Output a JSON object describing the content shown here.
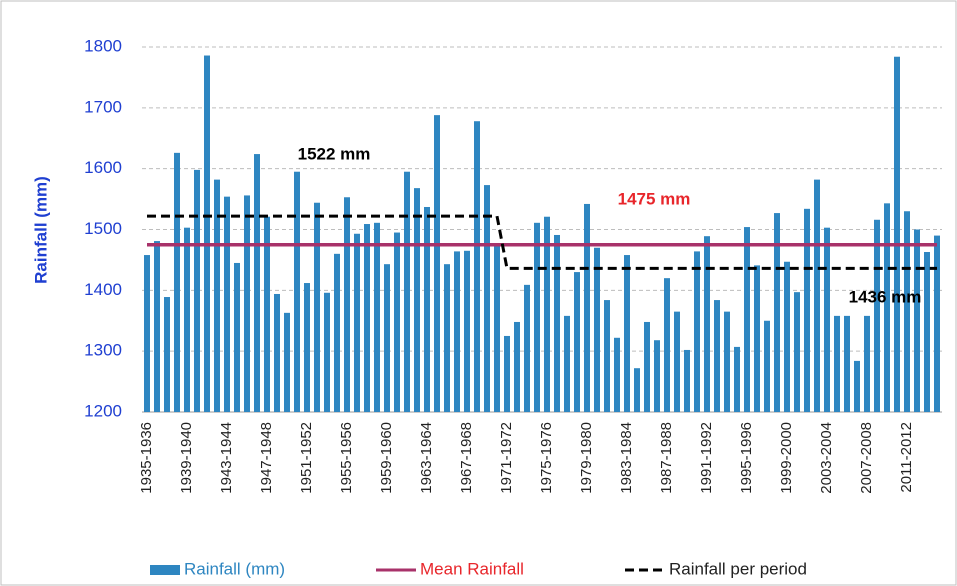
{
  "chart_data": {
    "type": "bar",
    "y_label": "Rainfall (mm)",
    "categories": [
      "1935-1936",
      null,
      null,
      null,
      "1939-1940",
      null,
      null,
      null,
      "1943-1944",
      null,
      null,
      null,
      "1947-1948",
      null,
      null,
      null,
      "1951-1952",
      null,
      null,
      null,
      "1955-1956",
      null,
      null,
      null,
      "1959-1960",
      null,
      null,
      null,
      "1963-1964",
      null,
      null,
      null,
      "1967-1968",
      null,
      null,
      null,
      "1971-1972",
      null,
      null,
      null,
      "1975-1976",
      null,
      null,
      null,
      "1979-1980",
      null,
      null,
      null,
      "1983-1984",
      null,
      null,
      null,
      "1987-1988",
      null,
      null,
      null,
      "1991-1992",
      null,
      null,
      null,
      "1995-1996",
      null,
      null,
      null,
      "1999-2000",
      null,
      null,
      null,
      "2003-2004",
      null,
      null,
      null,
      "2007-2008",
      null,
      null,
      null,
      "2011-2012",
      null,
      null,
      null
    ],
    "series": [
      {
        "name": "Rainfall (mm)",
        "type": "bar",
        "color": "#2e86c1",
        "values": [
          1458,
          1481,
          1389,
          1626,
          1503,
          1598,
          1786,
          1582,
          1554,
          1445,
          1556,
          1624,
          1521,
          1394,
          1363,
          1595,
          1412,
          1544,
          1396,
          1460,
          1553,
          1493,
          1509,
          1511,
          1443,
          1495,
          1595,
          1568,
          1537,
          1688,
          1443,
          1464,
          1465,
          1678,
          1573,
          1475,
          1325,
          1348,
          1409,
          1511,
          1521,
          1491,
          1358,
          1430,
          1542,
          1470,
          1384,
          1322,
          1458,
          1272,
          1348,
          1318,
          1420,
          1365,
          1302,
          1464,
          1489,
          1384,
          1365,
          1307,
          1504,
          1441,
          1350,
          1527,
          1447,
          1397,
          1534,
          1582,
          1503,
          1358,
          1358,
          1284,
          1358,
          1516,
          1543,
          1784,
          1530,
          1500,
          1463,
          1490
        ]
      },
      {
        "name": "Mean Rainfall",
        "type": "line",
        "color": "#a8326a",
        "dashed": false,
        "values": [
          1475,
          1475,
          1475,
          1475,
          1475,
          1475,
          1475,
          1475,
          1475,
          1475,
          1475,
          1475,
          1475,
          1475,
          1475,
          1475,
          1475,
          1475,
          1475,
          1475,
          1475,
          1475,
          1475,
          1475,
          1475,
          1475,
          1475,
          1475,
          1475,
          1475,
          1475,
          1475,
          1475,
          1475,
          1475,
          1475,
          1475,
          1475,
          1475,
          1475,
          1475,
          1475,
          1475,
          1475,
          1475,
          1475,
          1475,
          1475,
          1475,
          1475,
          1475,
          1475,
          1475,
          1475,
          1475,
          1475,
          1475,
          1475,
          1475,
          1475,
          1475,
          1475,
          1475,
          1475,
          1475,
          1475,
          1475,
          1475,
          1475,
          1475,
          1475,
          1475,
          1475,
          1475,
          1475,
          1475,
          1475,
          1475,
          1475,
          1475
        ]
      },
      {
        "name": "Rainfall per period",
        "type": "line",
        "color": "#000000",
        "dashed": true,
        "values": [
          1522,
          1522,
          1522,
          1522,
          1522,
          1522,
          1522,
          1522,
          1522,
          1522,
          1522,
          1522,
          1522,
          1522,
          1522,
          1522,
          1522,
          1522,
          1522,
          1522,
          1522,
          1522,
          1522,
          1522,
          1522,
          1522,
          1522,
          1522,
          1522,
          1522,
          1522,
          1522,
          1522,
          1522,
          1522,
          1522,
          1436,
          1436,
          1436,
          1436,
          1436,
          1436,
          1436,
          1436,
          1436,
          1436,
          1436,
          1436,
          1436,
          1436,
          1436,
          1436,
          1436,
          1436,
          1436,
          1436,
          1436,
          1436,
          1436,
          1436,
          1436,
          1436,
          1436,
          1436,
          1436,
          1436,
          1436,
          1436,
          1436,
          1436,
          1436,
          1436,
          1436,
          1436,
          1436,
          1436,
          1436,
          1436,
          1436,
          1436
        ]
      }
    ],
    "annotations": [
      {
        "text": "1522 mm",
        "value": 1522,
        "color": "#000000"
      },
      {
        "text": "1475 mm",
        "value": 1475,
        "color": "#e8262b"
      },
      {
        "text": "1436 mm",
        "value": 1436,
        "color": "#000000"
      }
    ],
    "ylim": [
      1200,
      1800
    ],
    "yticks": [
      1200,
      1300,
      1400,
      1500,
      1600,
      1700,
      1800
    ],
    "grid": true
  }
}
